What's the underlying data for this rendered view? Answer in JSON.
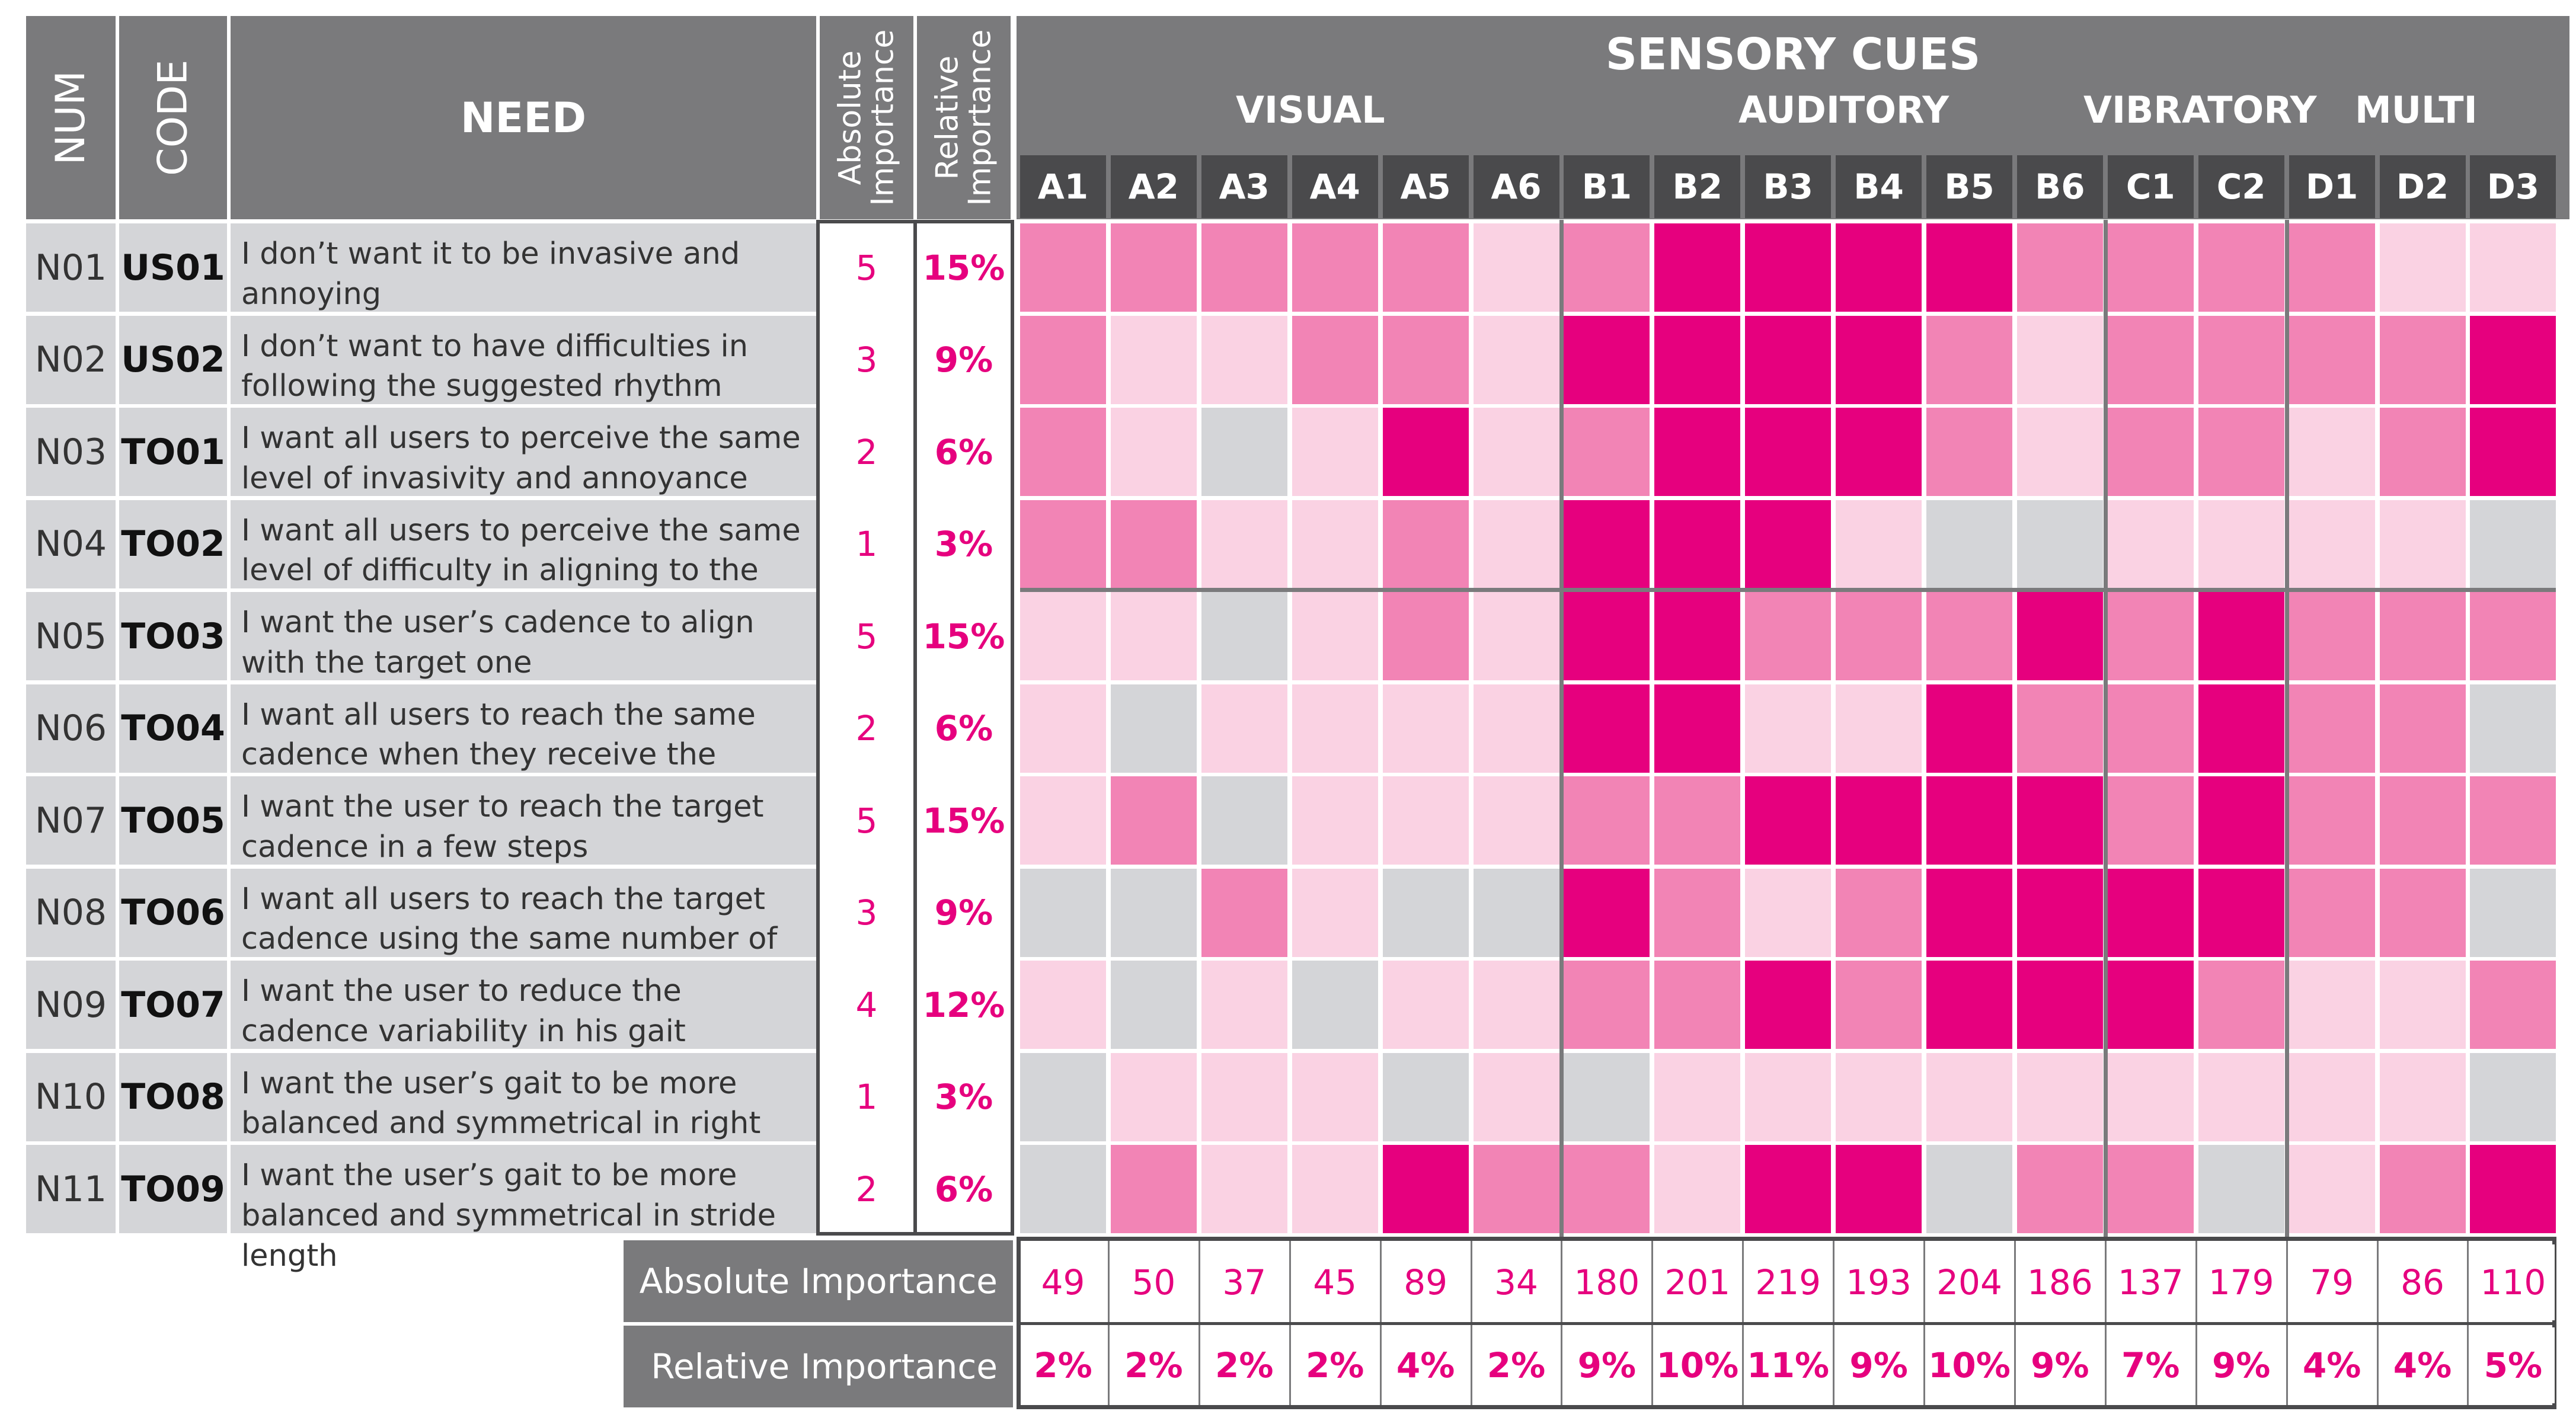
{
  "headers": {
    "num": "NUM",
    "code": "CODE",
    "need": "NEED",
    "abs_importance": "Absolute Importance",
    "rel_importance": "Relative Importance",
    "sensory_cues": "SENSORY CUES"
  },
  "groups": [
    "VISUAL",
    "AUDITORY",
    "VIBRATORY",
    "MULTI"
  ],
  "footer": {
    "absolute_label": "Absolute Importance",
    "relative_label": "Relative Importance"
  },
  "colors": {
    "strong": "#e6007e",
    "medium": "#f284b5",
    "weak": "#fad2e3",
    "none": "#d4d5d8",
    "header": "#7a7a7c",
    "column_header": "#4a4a4c"
  },
  "chart_data": {
    "type": "heatmap",
    "title": "SENSORY CUES",
    "legend_levels": [
      "none",
      "weak",
      "medium",
      "strong"
    ],
    "columns": [
      {
        "code": "A1",
        "group": "VISUAL",
        "abs": "49",
        "rel": "2%"
      },
      {
        "code": "A2",
        "group": "VISUAL",
        "abs": "50",
        "rel": "2%"
      },
      {
        "code": "A3",
        "group": "VISUAL",
        "abs": "37",
        "rel": "2%"
      },
      {
        "code": "A4",
        "group": "VISUAL",
        "abs": "45",
        "rel": "2%"
      },
      {
        "code": "A5",
        "group": "VISUAL",
        "abs": "89",
        "rel": "4%"
      },
      {
        "code": "A6",
        "group": "VISUAL",
        "abs": "34",
        "rel": "2%"
      },
      {
        "code": "B1",
        "group": "AUDITORY",
        "abs": "180",
        "rel": "9%"
      },
      {
        "code": "B2",
        "group": "AUDITORY",
        "abs": "201",
        "rel": "10%"
      },
      {
        "code": "B3",
        "group": "AUDITORY",
        "abs": "219",
        "rel": "11%"
      },
      {
        "code": "B4",
        "group": "AUDITORY",
        "abs": "193",
        "rel": "9%"
      },
      {
        "code": "B5",
        "group": "AUDITORY",
        "abs": "204",
        "rel": "10%"
      },
      {
        "code": "B6",
        "group": "AUDITORY",
        "abs": "186",
        "rel": "9%"
      },
      {
        "code": "C1",
        "group": "VIBRATORY",
        "abs": "137",
        "rel": "7%"
      },
      {
        "code": "C2",
        "group": "VIBRATORY",
        "abs": "179",
        "rel": "9%"
      },
      {
        "code": "D1",
        "group": "MULTI",
        "abs": "79",
        "rel": "4%"
      },
      {
        "code": "D2",
        "group": "MULTI",
        "abs": "86",
        "rel": "4%"
      },
      {
        "code": "D3",
        "group": "MULTI",
        "abs": "110",
        "rel": "5%"
      }
    ],
    "rows": [
      {
        "num": "N01",
        "code": "US01",
        "need": "I don’t want it to be invasive and annoying",
        "abs": "5",
        "rel": "15%",
        "levels": [
          2,
          2,
          2,
          2,
          2,
          1,
          2,
          3,
          3,
          3,
          3,
          2,
          2,
          2,
          2,
          1,
          1
        ]
      },
      {
        "num": "N02",
        "code": "US02",
        "need": "I don’t want to have difficulties in following the suggested rhythm",
        "abs": "3",
        "rel": "9%",
        "levels": [
          2,
          1,
          1,
          2,
          2,
          1,
          3,
          3,
          3,
          3,
          2,
          1,
          2,
          2,
          2,
          2,
          3
        ]
      },
      {
        "num": "N03",
        "code": "TO01",
        "need": "I want all users to perceive the same level of invasivity and annoyance",
        "abs": "2",
        "rel": "6%",
        "levels": [
          2,
          1,
          0,
          1,
          3,
          1,
          2,
          3,
          3,
          3,
          2,
          1,
          2,
          2,
          1,
          2,
          3
        ]
      },
      {
        "num": "N04",
        "code": "TO02",
        "need": "I want all users to perceive the same level of difficulty in aligning to the signal",
        "abs": "1",
        "rel": "3%",
        "levels": [
          2,
          2,
          1,
          1,
          2,
          1,
          3,
          3,
          3,
          1,
          0,
          0,
          1,
          1,
          1,
          1,
          0
        ]
      },
      {
        "num": "N05",
        "code": "TO03",
        "need": "I want the user’s cadence to align with the target one",
        "abs": "5",
        "rel": "15%",
        "levels": [
          1,
          1,
          0,
          1,
          2,
          1,
          3,
          3,
          2,
          2,
          2,
          3,
          2,
          3,
          2,
          2,
          2
        ]
      },
      {
        "num": "N06",
        "code": "TO04",
        "need": "I want all users to reach the same cadence when they receive the signal",
        "abs": "2",
        "rel": "6%",
        "levels": [
          1,
          0,
          1,
          1,
          1,
          1,
          3,
          3,
          1,
          1,
          3,
          2,
          2,
          3,
          2,
          2,
          0
        ]
      },
      {
        "num": "N07",
        "code": "TO05",
        "need": "I want the user to reach the target cadence in a  few steps",
        "abs": "5",
        "rel": "15%",
        "levels": [
          1,
          2,
          0,
          1,
          1,
          1,
          2,
          2,
          3,
          3,
          3,
          3,
          2,
          3,
          2,
          2,
          2
        ]
      },
      {
        "num": "N08",
        "code": "TO06",
        "need": "I want all users to reach the target cadence using the same number of steps",
        "abs": "3",
        "rel": "9%",
        "levels": [
          0,
          0,
          2,
          1,
          0,
          0,
          3,
          2,
          1,
          2,
          3,
          3,
          3,
          3,
          2,
          2,
          0
        ]
      },
      {
        "num": "N09",
        "code": "TO07",
        "need": "I want the user to reduce the cadence variability in his gait",
        "abs": "4",
        "rel": "12%",
        "levels": [
          1,
          0,
          1,
          0,
          1,
          1,
          2,
          2,
          3,
          2,
          3,
          3,
          3,
          2,
          1,
          1,
          2
        ]
      },
      {
        "num": "N10",
        "code": "TO08",
        "need": "I want the user’s gait to be more balanced and symmetrical in right and left cadence",
        "abs": "1",
        "rel": "3%",
        "levels": [
          0,
          1,
          1,
          1,
          0,
          1,
          0,
          1,
          1,
          1,
          1,
          1,
          1,
          1,
          1,
          1,
          0
        ]
      },
      {
        "num": "N11",
        "code": "TO09",
        "need": "I want the user’s gait to be more balanced and symmetrical in stride length",
        "abs": "2",
        "rel": "6%",
        "levels": [
          0,
          2,
          1,
          1,
          3,
          2,
          2,
          1,
          3,
          3,
          0,
          2,
          2,
          0,
          1,
          2,
          3
        ]
      }
    ]
  }
}
